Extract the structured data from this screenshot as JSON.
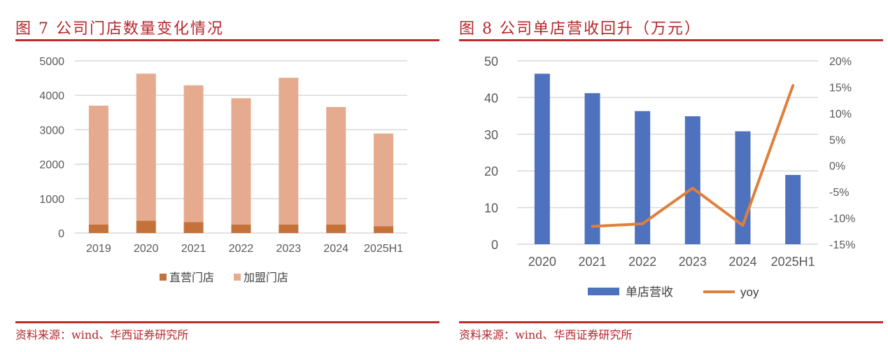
{
  "chart_data": [
    {
      "type": "bar",
      "stacked": true,
      "title": "图 7   公司门店数量变化情况",
      "categories": [
        "2019",
        "2020",
        "2021",
        "2022",
        "2023",
        "2024",
        "2025H1"
      ],
      "series": [
        {
          "name": "直营门店",
          "color": "#c5713a",
          "values": [
            250,
            360,
            320,
            250,
            250,
            250,
            200
          ]
        },
        {
          "name": "加盟门店",
          "color": "#e6ab8e",
          "values": [
            3450,
            4270,
            3970,
            3665,
            4260,
            3410,
            2690
          ]
        }
      ],
      "ylim": [
        0,
        5000
      ],
      "yticks": [
        "0",
        "1000",
        "2000",
        "3000",
        "4000",
        "5000"
      ],
      "grid": true,
      "legend": "bottom",
      "source": "资料来源：wind、华西证券研究所"
    },
    {
      "type": "bar+line",
      "title": "图 8   公司单店营收回升（万元）",
      "categories": [
        "2020",
        "2021",
        "2022",
        "2023",
        "2024",
        "2025H1"
      ],
      "series": [
        {
          "name": "单店营收",
          "type": "bar",
          "axis": "left",
          "color": "#4e72be",
          "values": [
            46.5,
            41.2,
            36.3,
            34.9,
            30.8,
            18.9
          ]
        },
        {
          "name": "yoy",
          "type": "line",
          "axis": "right",
          "color": "#e07f3c",
          "values": [
            null,
            -11.6,
            -11.1,
            -4.3,
            -11.4,
            15.3
          ]
        }
      ],
      "ylim": [
        0,
        50
      ],
      "yticks": [
        "0",
        "10",
        "20",
        "30",
        "40",
        "50"
      ],
      "y2lim": [
        -15,
        20
      ],
      "y2ticks": [
        "-15%",
        "-10%",
        "-5%",
        "0%",
        "5%",
        "10%",
        "15%",
        "20%"
      ],
      "grid": true,
      "legend": "bottom",
      "source": "资料来源：wind、华西证券研究所"
    }
  ]
}
